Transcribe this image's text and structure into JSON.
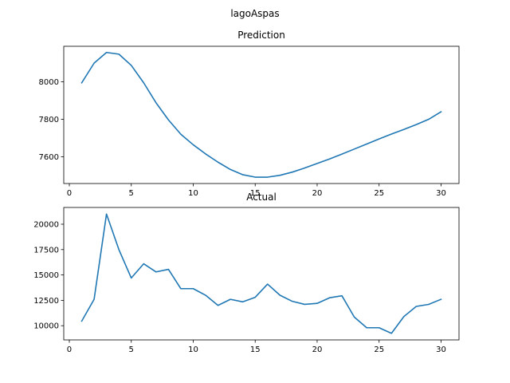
{
  "figure": {
    "suptitle": "lagoAspas"
  },
  "colors": {
    "series": "#1f77b4",
    "axis": "#000000",
    "background": "#ffffff"
  },
  "chart_data": [
    {
      "type": "line",
      "title": "Prediction",
      "xlabel": "",
      "ylabel": "",
      "xlim": [
        -0.45,
        31.45
      ],
      "ylim": [
        7457,
        8190
      ],
      "xticks": [
        0,
        5,
        10,
        15,
        20,
        25,
        30
      ],
      "yticks": [
        7600,
        7800,
        8000
      ],
      "grid": false,
      "series": [
        {
          "x": [
            1,
            2,
            3,
            4,
            5,
            6,
            7,
            8,
            9,
            10,
            11,
            12,
            13,
            14,
            15,
            16,
            17,
            18,
            19,
            20,
            21,
            22,
            23,
            24,
            25,
            26,
            27,
            28,
            29,
            30
          ],
          "y": [
            7995,
            8100,
            8157,
            8148,
            8088,
            7995,
            7888,
            7797,
            7720,
            7664,
            7615,
            7571,
            7532,
            7504,
            7491,
            7491,
            7501,
            7518,
            7540,
            7564,
            7588,
            7614,
            7641,
            7668,
            7695,
            7721,
            7746,
            7772,
            7800,
            7840
          ]
        }
      ]
    },
    {
      "type": "line",
      "title": "Actual",
      "xlabel": "",
      "ylabel": "",
      "xlim": [
        -0.45,
        31.45
      ],
      "ylim": [
        8600,
        21650
      ],
      "xticks": [
        0,
        5,
        10,
        15,
        20,
        25,
        30
      ],
      "yticks": [
        10000,
        12500,
        15000,
        17500,
        20000
      ],
      "grid": false,
      "series": [
        {
          "x": [
            1,
            2,
            3,
            4,
            5,
            6,
            7,
            8,
            9,
            10,
            11,
            12,
            13,
            14,
            15,
            16,
            17,
            18,
            19,
            20,
            21,
            22,
            23,
            24,
            25,
            26,
            27,
            28,
            29,
            30
          ],
          "y": [
            10450,
            12600,
            21000,
            17500,
            14700,
            16100,
            15300,
            15550,
            13650,
            13650,
            13000,
            12000,
            12600,
            12350,
            12800,
            14100,
            13000,
            12400,
            12100,
            12200,
            12750,
            12950,
            10850,
            9800,
            9800,
            9250,
            10900,
            11900,
            12100,
            12600
          ]
        }
      ]
    }
  ]
}
